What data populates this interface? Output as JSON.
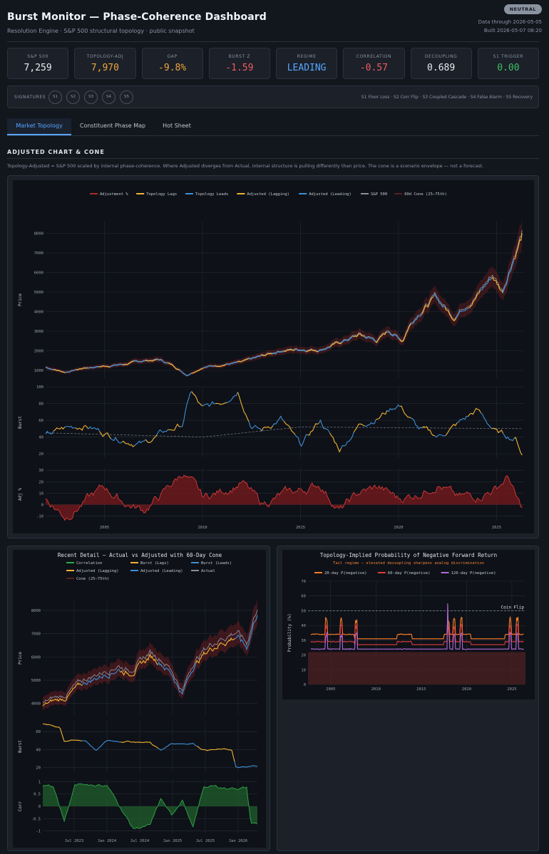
{
  "header": {
    "title": "Burst Monitor — Phase-Coherence Dashboard",
    "subtitle": "Resolution Engine · S&P 500 structural topology · public snapshot",
    "badge": "NEUTRAL",
    "data_through": "Data through 2026-05-05",
    "built": "Built 2026-05-07 08:20"
  },
  "kpis": [
    {
      "label": "S&P 500",
      "value": "7,259",
      "color": "#e8ecf1"
    },
    {
      "label": "TOPOLOGY-ADJ",
      "value": "7,970",
      "color": "#f0a53a"
    },
    {
      "label": "GAP",
      "value": "-9.8%",
      "color": "#f0a53a"
    },
    {
      "label": "BURST Z",
      "value": "-1.59",
      "color": "#f25c5c"
    },
    {
      "label": "REGIME",
      "value": "LEADING",
      "color": "#58a6ff"
    },
    {
      "label": "CORRELATION",
      "value": "-0.57",
      "color": "#f25c5c"
    },
    {
      "label": "DECOUPLING",
      "value": "0.689",
      "color": "#e8ecf1"
    },
    {
      "label": "S1 TRIGGER",
      "value": "0.00",
      "color": "#3fbf5f"
    }
  ],
  "signatures": {
    "label": "SIGNATURES",
    "pills": [
      "S1",
      "S2",
      "S3",
      "S4",
      "S5"
    ],
    "legend": "S1 Floor Loss · S2 Corr Flip · S3 Coupled Cascade · S4 False Alarm · S5 Recovery"
  },
  "tabs": [
    {
      "label": "Market Topology",
      "active": true
    },
    {
      "label": "Constituent Phase Map",
      "active": false
    },
    {
      "label": "Hot Sheet",
      "active": false
    }
  ],
  "section": {
    "title": "ADJUSTED CHART & CONE",
    "description": "Topology-Adjusted = S&P 500 scaled by internal phase-coherence. Where Adjusted diverges from Actual, internal structure is pulling differently than price. The cone is a scenario envelope — not a forecast."
  },
  "colors": {
    "lagging": "#f2b233",
    "leading": "#3d8fd6",
    "adj": "#b02a2a",
    "actual": "#8a8f99",
    "corr": "#2ea84a",
    "p20": "#ff7f2a",
    "p60": "#e03c3c",
    "p120": "#b06ad8"
  },
  "chart_data": [
    {
      "type": "line",
      "id": "main",
      "legend": [
        "Adjustment %",
        "Topology Lags",
        "Topology Leads",
        "Adjusted (Lagging)",
        "Adjusted (Leading)",
        "S&P 500",
        "60d Cone (25–75th)"
      ],
      "x_ticks": [
        "2005",
        "2010",
        "2015",
        "2020",
        "2025"
      ],
      "x_range": [
        2002,
        2026.4
      ],
      "panels": [
        {
          "ylabel": "Price",
          "yticks": [
            1000,
            2000,
            3000,
            4000,
            5000,
            6000,
            7000,
            8000
          ],
          "ylim": [
            600,
            8600
          ],
          "series": [
            {
              "name": "S&P 500",
              "x": [
                2002,
                2003,
                2004,
                2005,
                2006,
                2007,
                2007.8,
                2008.5,
                2009.2,
                2010,
                2011,
                2012,
                2013,
                2014,
                2015,
                2016,
                2017,
                2018,
                2018.9,
                2019.5,
                2020.2,
                2020.5,
                2021,
                2021.9,
                2022.8,
                2023.5,
                2024,
                2024.8,
                2025.3,
                2025.8,
                2026.3
              ],
              "y": [
                1150,
                900,
                1120,
                1210,
                1300,
                1480,
                1530,
                1250,
                750,
                1150,
                1280,
                1400,
                1700,
                2000,
                2060,
                2050,
                2400,
                2800,
                2500,
                3000,
                2500,
                3200,
                3900,
                4700,
                3700,
                4400,
                4800,
                5800,
                5000,
                6600,
                7900
              ]
            }
          ]
        },
        {
          "ylabel": "Burst",
          "yticks": [
            20,
            40,
            60,
            80,
            100
          ],
          "ylim": [
            15,
            100
          ],
          "series": [
            {
              "name": "Burst",
              "x": [
                2002,
                2003,
                2004,
                2005,
                2006,
                2007,
                2008,
                2009,
                2009.4,
                2010,
                2011,
                2011.8,
                2012.5,
                2013,
                2014,
                2015,
                2016,
                2017,
                2018,
                2019,
                2020,
                2021,
                2022,
                2023,
                2024,
                2025,
                2026,
                2026.3
              ],
              "y": [
                42,
                50,
                55,
                45,
                38,
                32,
                45,
                55,
                95,
                72,
                82,
                98,
                55,
                48,
                62,
                28,
                60,
                25,
                55,
                65,
                80,
                50,
                40,
                55,
                72,
                45,
                38,
                20
              ]
            }
          ]
        },
        {
          "ylabel": "Adj %",
          "yticks": [
            -10,
            0,
            10,
            20,
            30
          ],
          "ylim": [
            -14,
            32
          ],
          "series": [
            {
              "name": "Adjustment %",
              "x": [
                2002,
                2003,
                2004,
                2005,
                2006,
                2007,
                2008,
                2009,
                2009.5,
                2010,
                2011,
                2012,
                2013,
                2014,
                2015,
                2016,
                2017,
                2018,
                2019,
                2020,
                2021,
                2022,
                2023,
                2024,
                2025,
                2025.6,
                2026,
                2026.3
              ],
              "y": [
                5,
                -10,
                3,
                15,
                2,
                -5,
                10,
                28,
                18,
                5,
                12,
                20,
                0,
                8,
                12,
                18,
                -5,
                10,
                15,
                5,
                10,
                20,
                5,
                8,
                15,
                25,
                5,
                -5
              ]
            }
          ]
        }
      ]
    },
    {
      "type": "line",
      "id": "recent",
      "title": "Recent Detail — Actual vs Adjusted with 60-Day Cone",
      "legend": [
        "Correlation",
        "Burst (Lags)",
        "Burst (Leads)",
        "Adjusted (Lagging)",
        "Adjusted (Leading)",
        "Actual",
        "Cone (25–75th)"
      ],
      "x_ticks": [
        "Jul 2023",
        "Jan 2024",
        "Jul 2024",
        "Jan 2025",
        "Jul 2025",
        "Jan 2026"
      ],
      "panels": [
        {
          "ylabel": "Price",
          "yticks": [
            4000,
            5000,
            6000,
            7000,
            8000
          ],
          "ylim": [
            3500,
            8400
          ],
          "series": [
            {
              "name": "Actual",
              "x": [
                0,
                0.05,
                0.1,
                0.15,
                0.2,
                0.25,
                0.3,
                0.35,
                0.4,
                0.45,
                0.5,
                0.55,
                0.6,
                0.65,
                0.7,
                0.75,
                0.8,
                0.85,
                0.9,
                0.95,
                1.0
              ],
              "y": [
                3900,
                4100,
                4200,
                4600,
                4900,
                5100,
                5300,
                5500,
                5300,
                5600,
                6000,
                5800,
                5300,
                4400,
                5600,
                6100,
                6500,
                6700,
                6900,
                6400,
                8000
              ]
            }
          ]
        },
        {
          "ylabel": "Burst",
          "yticks": [
            20,
            40,
            60
          ],
          "ylim": [
            15,
            72
          ],
          "series": [
            {
              "name": "Burst",
              "x": [
                0,
                0.08,
                0.1,
                0.2,
                0.25,
                0.3,
                0.4,
                0.5,
                0.55,
                0.6,
                0.7,
                0.75,
                0.8,
                0.88,
                0.9,
                0.95,
                1.0
              ],
              "y": [
                68,
                65,
                50,
                50,
                39,
                50,
                49,
                48,
                39,
                47,
                47,
                40,
                40,
                40,
                20,
                20,
                22
              ]
            }
          ]
        },
        {
          "ylabel": "Corr",
          "yticks": [
            -1,
            -0.5,
            0,
            0.5,
            1
          ],
          "ylim": [
            -1.1,
            1.1
          ],
          "series": [
            {
              "name": "Correlation",
              "x": [
                0,
                0.05,
                0.1,
                0.15,
                0.2,
                0.3,
                0.38,
                0.42,
                0.5,
                0.55,
                0.6,
                0.65,
                0.7,
                0.75,
                0.8,
                0.85,
                0.95,
                0.97,
                1.0
              ],
              "y": [
                0.85,
                0.8,
                -0.6,
                0.85,
                0.9,
                0.85,
                -0.3,
                -0.9,
                -0.8,
                0.3,
                -0.4,
                0.3,
                -0.9,
                0.8,
                0.8,
                0.75,
                0.75,
                -0.7,
                -0.7
              ]
            }
          ]
        }
      ]
    },
    {
      "type": "area",
      "id": "prob",
      "title": "Topology-Implied Probability of Negative Forward Return",
      "subtitle": "Tail regime — elevated decoupling sharpens analog discrimination",
      "legend": [
        "20-day P(negative)",
        "60-day P(negative)",
        "120-day P(negative)"
      ],
      "annotation": "Coin Flip",
      "ylabel": "Probability (%)",
      "yticks": [
        0,
        10,
        20,
        30,
        40,
        50,
        60,
        70
      ],
      "ylim": [
        0,
        70
      ],
      "x_ticks": [
        "2005",
        "2010",
        "2015",
        "2020",
        "2025"
      ],
      "x_range": [
        2002.5,
        2026.5
      ],
      "series": [
        {
          "name": "20-day P(negative)",
          "base": 34
        },
        {
          "name": "60-day P(negative)",
          "base": 29
        },
        {
          "name": "120-day P(negative)",
          "base": 24
        }
      ]
    }
  ]
}
